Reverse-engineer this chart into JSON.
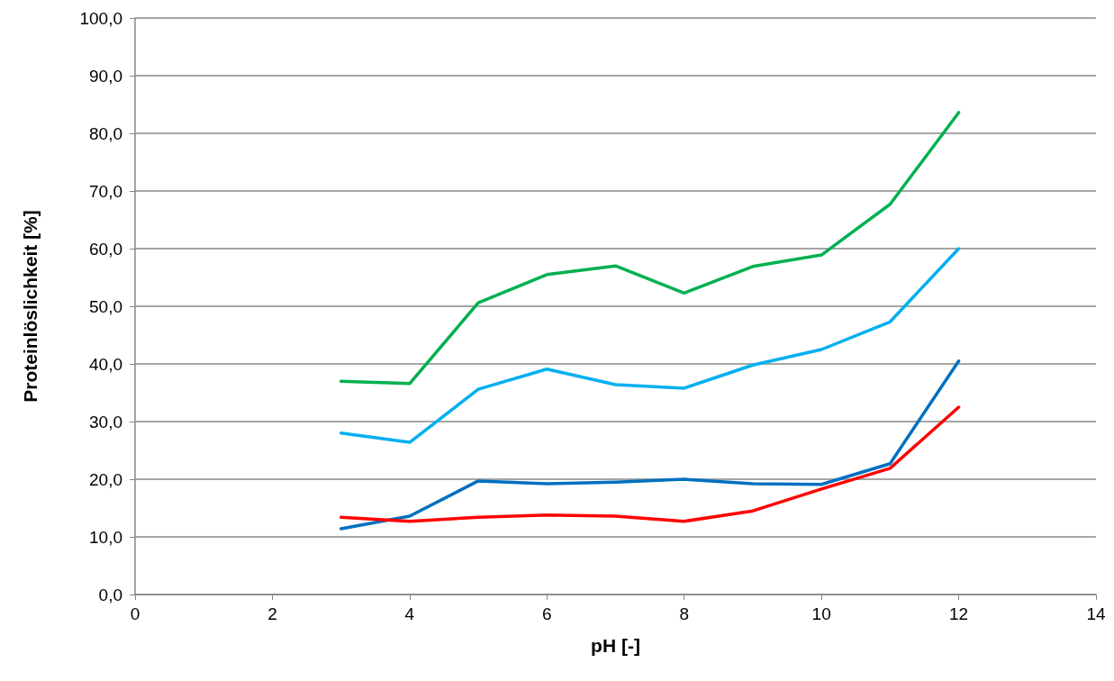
{
  "chart_data": {
    "type": "line",
    "xlabel": "pH [-]",
    "ylabel": "Proteinlöslichkeit [%]",
    "x": [
      3,
      4,
      5,
      6,
      7,
      8,
      9,
      10,
      11,
      12
    ],
    "series": [
      {
        "color": "#00b050",
        "values": [
          37.0,
          36.6,
          50.6,
          55.5,
          57.0,
          52.3,
          56.9,
          58.9,
          67.7,
          83.6
        ]
      },
      {
        "color": "#00b0f0",
        "values": [
          28.0,
          26.4,
          35.6,
          39.1,
          36.4,
          35.8,
          39.8,
          42.5,
          47.3,
          60.0
        ]
      },
      {
        "color": "#0070c0",
        "values": [
          11.4,
          13.6,
          19.7,
          19.2,
          19.5,
          20.0,
          19.2,
          19.1,
          22.7,
          40.5
        ]
      },
      {
        "color": "#ff0000",
        "values": [
          13.4,
          12.7,
          13.4,
          13.8,
          13.6,
          12.7,
          14.5,
          18.3,
          21.9,
          32.5
        ]
      }
    ],
    "xlim": [
      0,
      14
    ],
    "xticks": [
      0,
      2,
      4,
      6,
      8,
      10,
      12,
      14
    ],
    "ylim": [
      0,
      100
    ],
    "yticks": [
      {
        "value": 0,
        "label": "0,0"
      },
      {
        "value": 10,
        "label": "10,0"
      },
      {
        "value": 20,
        "label": "20,0"
      },
      {
        "value": 30,
        "label": "30,0"
      },
      {
        "value": 40,
        "label": "40,0"
      },
      {
        "value": 50,
        "label": "50,0"
      },
      {
        "value": 60,
        "label": "60,0"
      },
      {
        "value": 70,
        "label": "70,0"
      },
      {
        "value": 80,
        "label": "80,0"
      },
      {
        "value": 90,
        "label": "90,0"
      },
      {
        "value": 100,
        "label": "100,0"
      }
    ],
    "grid": "y",
    "marker": "none",
    "line_style": "solid"
  }
}
